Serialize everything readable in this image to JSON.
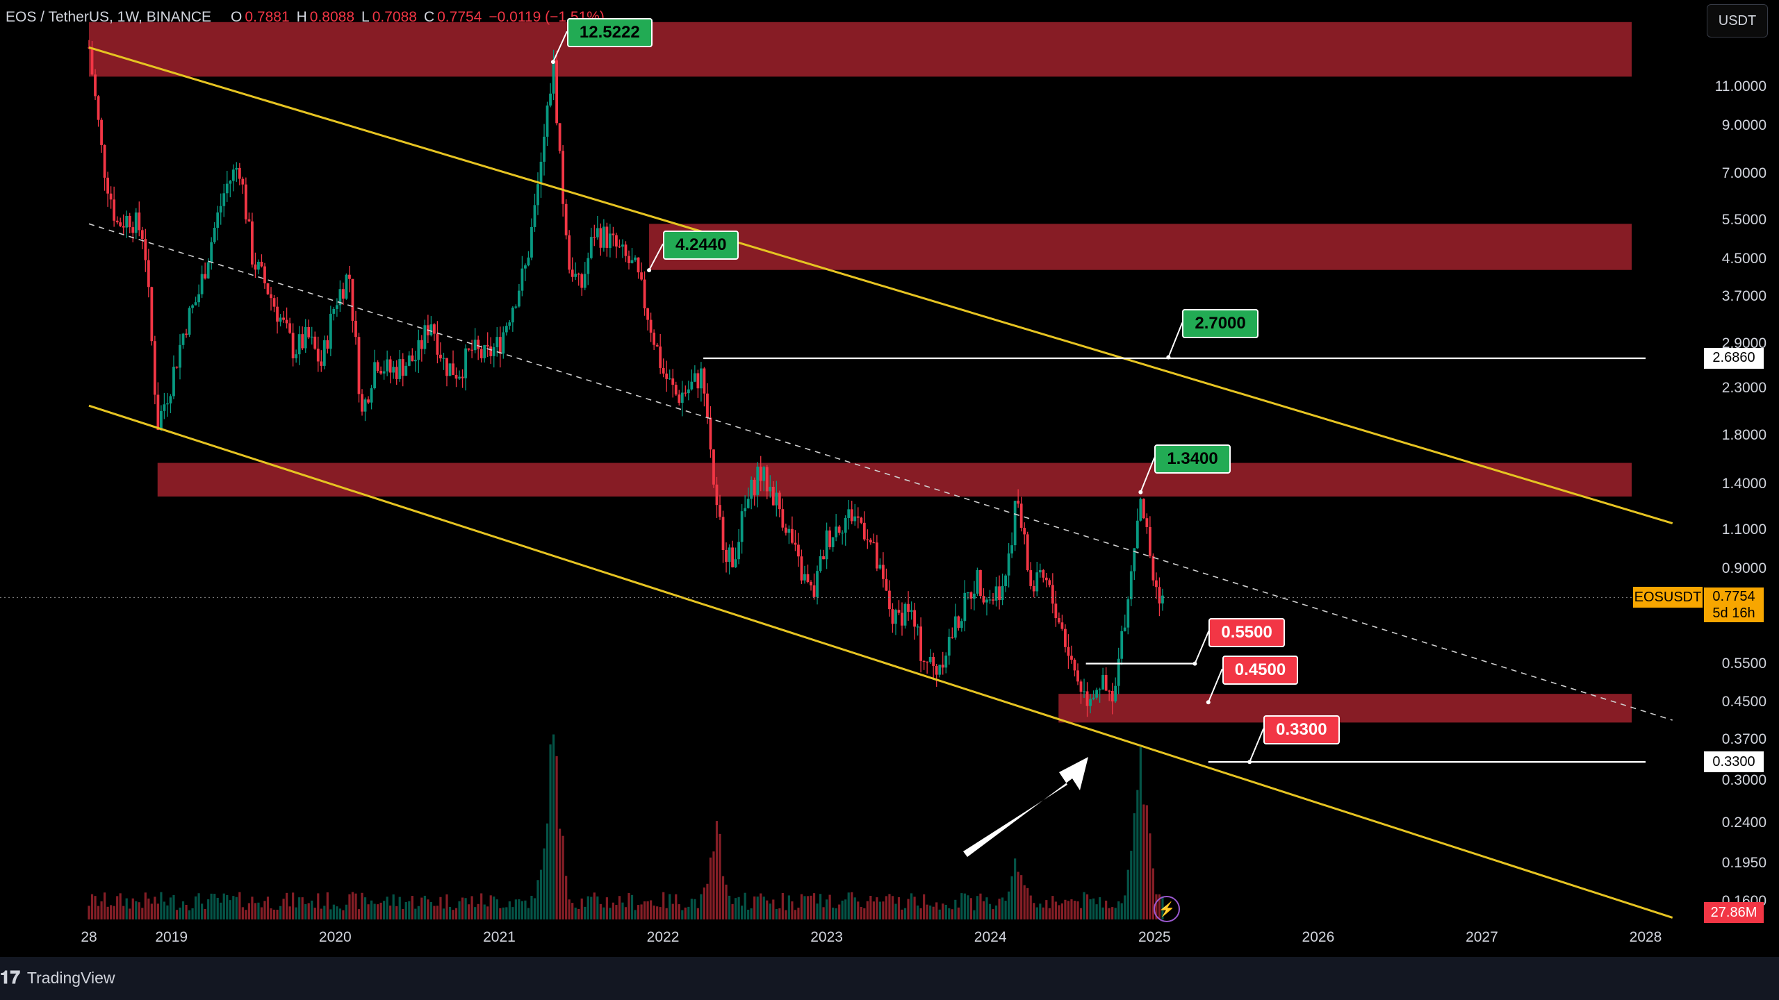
{
  "header": {
    "symbol": "EOS / TetherUS, 1W, BINANCE",
    "o_label": "O",
    "o_value": "0.7881",
    "h_label": "H",
    "h_value": "0.8088",
    "l_label": "L",
    "l_value": "0.7088",
    "c_label": "C",
    "c_value": "0.7754",
    "change": "−0.0119 (−1.51%)"
  },
  "currency_button": "USDT",
  "price_axis": {
    "labels": [
      "11.0000",
      "9.0000",
      "7.0000",
      "5.5000",
      "4.5000",
      "3.7000",
      "2.9000",
      "2.3000",
      "1.8000",
      "1.4000",
      "1.1000",
      "0.9000",
      "0.5500",
      "0.4500",
      "0.3700",
      "0.3000",
      "0.2400",
      "0.1950",
      "0.1600"
    ],
    "level_plates": [
      "2.6860",
      "0.3300"
    ],
    "symbol_plate": "EOSUSDT",
    "last_price": "0.7754",
    "countdown": "5d 16h",
    "volume_plate": "27.86M"
  },
  "time_axis": [
    "28",
    "2019",
    "2020",
    "2021",
    "2022",
    "2023",
    "2024",
    "2025",
    "2026",
    "2027",
    "2028"
  ],
  "annotations": [
    "12.5222",
    "4.2440",
    "2.7000",
    "1.3400",
    "0.5500",
    "0.4500",
    "0.3300"
  ],
  "footer": {
    "brand": "TradingView"
  },
  "colors": {
    "background": "#000000",
    "channel": "#e6c422",
    "zone": "#8e1d27",
    "up": "#089981",
    "down": "#f23645",
    "label_green": "#22ab54",
    "label_red": "#f23645",
    "price_plate": "#f7a600"
  },
  "chart_data": {
    "type": "candlestick",
    "symbol": "EOS / TetherUS",
    "interval": "1W",
    "exchange": "BINANCE",
    "y_scale": "log",
    "ylim": [
      0.135,
      15.5
    ],
    "x_range": [
      "2018-07",
      "2028-01"
    ],
    "last": {
      "open": 0.7881,
      "high": 0.8088,
      "low": 0.7088,
      "close": 0.7754,
      "change": -0.0119,
      "change_pct": -1.51
    },
    "price_path": [
      [
        "2018-07",
        13.5
      ],
      [
        "2018-08",
        7.5
      ],
      [
        "2018-09",
        5.4
      ],
      [
        "2018-10",
        5.6
      ],
      [
        "2018-11",
        5.1
      ],
      [
        "2018-12",
        1.9
      ],
      [
        "2019-01",
        2.4
      ],
      [
        "2019-02",
        3.2
      ],
      [
        "2019-03",
        3.7
      ],
      [
        "2019-04",
        5.0
      ],
      [
        "2019-05",
        6.5
      ],
      [
        "2019-06",
        7.4
      ],
      [
        "2019-07",
        4.5
      ],
      [
        "2019-08",
        3.9
      ],
      [
        "2019-09",
        3.3
      ],
      [
        "2019-10",
        2.8
      ],
      [
        "2019-11",
        3.0
      ],
      [
        "2019-12",
        2.6
      ],
      [
        "2020-01",
        3.6
      ],
      [
        "2020-02",
        4.2
      ],
      [
        "2020-03",
        2.0
      ],
      [
        "2020-04",
        2.7
      ],
      [
        "2020-05",
        2.5
      ],
      [
        "2020-06",
        2.6
      ],
      [
        "2020-07",
        2.7
      ],
      [
        "2020-08",
        3.3
      ],
      [
        "2020-09",
        2.6
      ],
      [
        "2020-10",
        2.5
      ],
      [
        "2020-11",
        2.8
      ],
      [
        "2020-12",
        2.7
      ],
      [
        "2021-01",
        2.9
      ],
      [
        "2021-02",
        3.6
      ],
      [
        "2021-03",
        4.3
      ],
      [
        "2021-04",
        6.8
      ],
      [
        "2021-05",
        12.5
      ],
      [
        "2021-06",
        4.6
      ],
      [
        "2021-07",
        3.8
      ],
      [
        "2021-08",
        5.2
      ],
      [
        "2021-09",
        5.0
      ],
      [
        "2021-10",
        4.6
      ],
      [
        "2021-11",
        4.24
      ],
      [
        "2021-12",
        3.3
      ],
      [
        "2022-01",
        2.5
      ],
      [
        "2022-02",
        2.2
      ],
      [
        "2022-03",
        2.3
      ],
      [
        "2022-04",
        2.5
      ],
      [
        "2022-05",
        1.2
      ],
      [
        "2022-06",
        0.92
      ],
      [
        "2022-07",
        1.2
      ],
      [
        "2022-08",
        1.5
      ],
      [
        "2022-09",
        1.35
      ],
      [
        "2022-10",
        1.15
      ],
      [
        "2022-11",
        0.9
      ],
      [
        "2022-12",
        0.78
      ],
      [
        "2023-01",
        1.05
      ],
      [
        "2023-02",
        1.15
      ],
      [
        "2023-03",
        1.2
      ],
      [
        "2023-04",
        1.1
      ],
      [
        "2023-05",
        0.86
      ],
      [
        "2023-06",
        0.68
      ],
      [
        "2023-07",
        0.75
      ],
      [
        "2023-08",
        0.58
      ],
      [
        "2023-09",
        0.53
      ],
      [
        "2023-10",
        0.62
      ],
      [
        "2023-11",
        0.73
      ],
      [
        "2023-12",
        0.86
      ],
      [
        "2024-01",
        0.77
      ],
      [
        "2024-02",
        0.85
      ],
      [
        "2024-03",
        1.3
      ],
      [
        "2024-04",
        0.81
      ],
      [
        "2024-05",
        0.85
      ],
      [
        "2024-06",
        0.7
      ],
      [
        "2024-07",
        0.55
      ],
      [
        "2024-08",
        0.46
      ],
      [
        "2024-09",
        0.5
      ],
      [
        "2024-10",
        0.44
      ],
      [
        "2024-11",
        0.78
      ],
      [
        "2024-12",
        1.34
      ],
      [
        "2025-01",
        0.82
      ],
      [
        "2025-01-20",
        0.7754
      ]
    ],
    "supply_zones": [
      {
        "from": "2018-07",
        "to": "2027-12",
        "low": 11.6,
        "high": 15.4
      },
      {
        "from": "2021-12",
        "to": "2027-12",
        "low": 4.25,
        "high": 5.4
      },
      {
        "from": "2018-12",
        "to": "2027-12",
        "low": 1.31,
        "high": 1.56
      },
      {
        "from": "2024-06",
        "to": "2027-12",
        "low": 0.405,
        "high": 0.47
      }
    ],
    "channel_upper": [
      [
        "2018-07",
        13.5
      ],
      [
        "2028-03",
        1.14
      ]
    ],
    "channel_lower": [
      [
        "2018-07",
        2.1
      ],
      [
        "2028-03",
        0.147
      ]
    ],
    "channel_mid": [
      [
        "2018-07",
        5.4
      ],
      [
        "2028-03",
        0.41
      ]
    ],
    "horizontal_levels": [
      {
        "price": 2.686,
        "from": "2022-04",
        "to": "2028-01"
      },
      {
        "price": 0.55,
        "from": "2024-08",
        "to": "2025-04"
      },
      {
        "price": 0.33,
        "from": "2025-05",
        "to": "2028-01"
      }
    ],
    "labeled_points": [
      {
        "label": "12.5222",
        "date": "2021-05",
        "price": 12.5222
      },
      {
        "label": "4.2440",
        "date": "2021-12",
        "price": 4.244
      },
      {
        "label": "2.7000",
        "date": "2025-02",
        "price": 2.7
      },
      {
        "label": "1.3400",
        "date": "2024-12",
        "price": 1.34
      },
      {
        "label": "0.5500",
        "date": "2025-04",
        "price": 0.55
      },
      {
        "label": "0.4500",
        "date": "2025-05",
        "price": 0.45
      },
      {
        "label": "0.3300",
        "date": "2025-08",
        "price": 0.33
      }
    ],
    "volume_last": "27.86M",
    "volume_spikes": [
      {
        "date": "2021-05",
        "relative": 0.95
      },
      {
        "date": "2024-12",
        "relative": 0.76
      },
      {
        "date": "2022-05",
        "relative": 0.45
      },
      {
        "date": "2024-03",
        "relative": 0.35
      }
    ]
  }
}
